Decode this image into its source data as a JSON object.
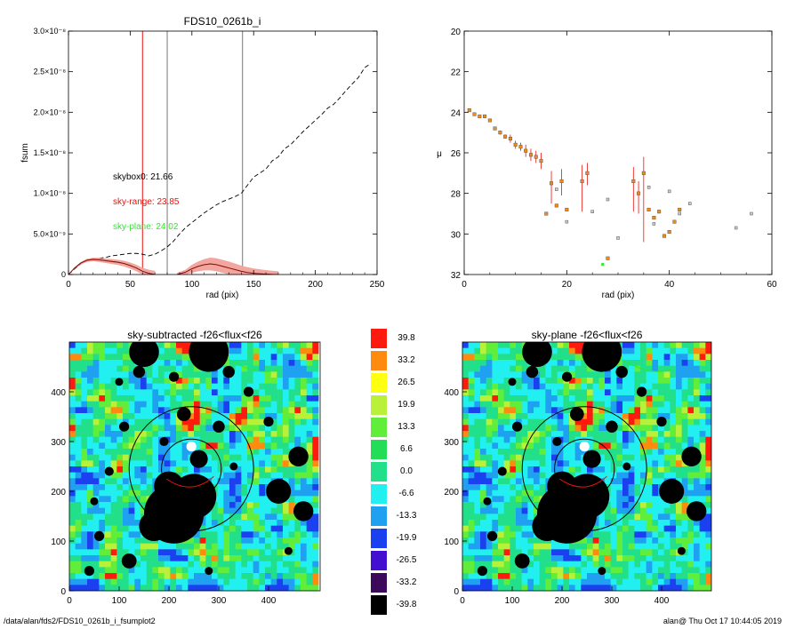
{
  "footer": {
    "path": "/data/alan/fds2/FDS10_0261b_i_fsumplot2",
    "stamp": "alan@  Thu Oct 17 10:44:05 2019"
  },
  "colors": {
    "black": "#000000",
    "red": "#e8120c",
    "green": "#2ee82e",
    "gray": "#777777",
    "orange": "#f08a1a",
    "band": "#f2a6a0"
  },
  "chart_data": [
    {
      "id": "fsum",
      "type": "line",
      "title": "FDS10_0261b_i",
      "xlabel": "rad (pix)",
      "ylabel": "fsum",
      "xlim": [
        0,
        250
      ],
      "ylim": [
        0,
        3e-08
      ],
      "xticks": [
        "0",
        "50",
        "100",
        "150",
        "200",
        "250"
      ],
      "yticks": [
        "0",
        "5.0×10⁻⁹",
        "1.0×10⁻⁸",
        "1.5×10⁻⁸",
        "2.0×10⁻⁸",
        "2.5×10⁻⁸",
        "3.0×10⁻⁸"
      ],
      "vlines": [
        {
          "x": 60,
          "color": "red"
        },
        {
          "x": 80,
          "color": "gray"
        },
        {
          "x": 141,
          "color": "gray"
        }
      ],
      "annotations": [
        {
          "text": "skybox0: 21.66",
          "color": "black",
          "x": 18,
          "y": 1.18e-08
        },
        {
          "text": "sky-range: 23.85",
          "color": "red",
          "x": 18,
          "y": 8.8e-09
        },
        {
          "text": "sky-plane: 24.02",
          "color": "green",
          "x": 18,
          "y": 6e-09
        }
      ],
      "series": [
        {
          "style": "dashed",
          "color": "black",
          "x": [
            0,
            5,
            10,
            15,
            20,
            25,
            30,
            35,
            40,
            45,
            50,
            55,
            60,
            65,
            70,
            75,
            80,
            85,
            90,
            95,
            100,
            105,
            110,
            115,
            120,
            125,
            130,
            135,
            140,
            145,
            150,
            155,
            160,
            165,
            170,
            175,
            180,
            185,
            190,
            195,
            200,
            205,
            210,
            215,
            220,
            225,
            230,
            235,
            240,
            245
          ],
          "y": [
            0,
            7e-10,
            1.3e-09,
            1.7e-09,
            1.9e-09,
            2e-09,
            2.1e-09,
            2.3e-09,
            2.4e-09,
            2.5e-09,
            2.6e-09,
            2.6e-09,
            2.5e-09,
            2.3e-09,
            2.5e-09,
            2.9e-09,
            3.4e-09,
            4.1e-09,
            5e-09,
            5.8e-09,
            6.4e-09,
            7e-09,
            7.6e-09,
            8.1e-09,
            8.6e-09,
            9e-09,
            9.3e-09,
            9.6e-09,
            1e-08,
            1.1e-08,
            1.2e-08,
            1.25e-08,
            1.3e-08,
            1.4e-08,
            1.45e-08,
            1.55e-08,
            1.6e-08,
            1.68e-08,
            1.76e-08,
            1.83e-08,
            1.9e-08,
            1.97e-08,
            2.05e-08,
            2.1e-08,
            2.18e-08,
            2.27e-08,
            2.35e-08,
            2.43e-08,
            2.55e-08,
            2.6e-08
          ]
        },
        {
          "style": "band",
          "color": "red",
          "x": [
            0,
            5,
            10,
            15,
            20,
            25,
            30,
            35,
            40,
            45,
            50,
            55,
            60,
            65,
            70
          ],
          "y": [
            0,
            8e-10,
            1.4e-09,
            1.75e-09,
            1.85e-09,
            1.8e-09,
            1.7e-09,
            1.6e-09,
            1.5e-09,
            1.35e-09,
            1.1e-09,
            8e-10,
            4e-10,
            1.5e-10,
            0
          ],
          "err": [
            0,
            1e-10,
            1.5e-10,
            2e-10,
            2.2e-10,
            2.5e-10,
            2.8e-10,
            3e-10,
            3.2e-10,
            3.5e-10,
            3.8e-10,
            4e-10,
            4.2e-10,
            4.5e-10,
            4.5e-10
          ]
        },
        {
          "style": "band",
          "color": "red",
          "x": [
            88,
            95,
            100,
            105,
            110,
            115,
            120,
            125,
            130,
            135,
            140,
            145,
            150,
            155,
            160,
            165,
            170
          ],
          "y": [
            0,
            3e-10,
            7e-10,
            1e-09,
            1.2e-09,
            1.3e-09,
            1.2e-09,
            1e-09,
            8e-10,
            6e-10,
            4e-10,
            2.5e-10,
            1.5e-10,
            1e-10,
            5e-11,
            2e-11,
            0
          ],
          "err": [
            2e-10,
            3e-10,
            5e-10,
            6e-10,
            7e-10,
            8e-10,
            8e-10,
            8e-10,
            8e-10,
            7.5e-10,
            7e-10,
            6.5e-10,
            6e-10,
            5.5e-10,
            5e-10,
            4.5e-10,
            4e-10
          ]
        }
      ]
    },
    {
      "id": "mu",
      "type": "scatter",
      "title": "",
      "xlabel": "rad (pix)",
      "ylabel": "μ",
      "xlim": [
        0,
        60
      ],
      "ylim": [
        32,
        20
      ],
      "xticks": [
        "0",
        "20",
        "40",
        "60"
      ],
      "yticks": [
        "20",
        "22",
        "24",
        "26",
        "28",
        "30",
        "32"
      ],
      "series": [
        {
          "color": "orange",
          "x": [
            1,
            2,
            3,
            4,
            5,
            6,
            7,
            8,
            9,
            10,
            11,
            12,
            13,
            14,
            15,
            16,
            17,
            18,
            19,
            20,
            23,
            24,
            28,
            33,
            34,
            35,
            36,
            37,
            38,
            39,
            40,
            41,
            42
          ],
          "y": [
            23.9,
            24.1,
            24.2,
            24.2,
            24.4,
            24.8,
            25.0,
            25.2,
            25.3,
            25.6,
            25.7,
            25.9,
            26.1,
            26.2,
            26.4,
            29.0,
            27.5,
            28.6,
            27.4,
            28.8,
            27.4,
            27.0,
            31.2,
            27.4,
            28.0,
            27.0,
            28.8,
            29.2,
            28.9,
            30.1,
            29.9,
            29.4,
            28.8
          ],
          "err_lo": [
            0,
            0,
            0,
            0,
            0,
            0,
            0.1,
            0.1,
            0.2,
            0.2,
            0.2,
            0.3,
            0.3,
            0.3,
            0.4,
            0,
            1.0,
            0,
            0.7,
            0,
            1.5,
            0.6,
            0,
            1.5,
            1.0,
            3.4,
            0,
            0,
            0,
            0,
            0,
            0,
            0
          ],
          "err_hi": [
            0,
            0,
            0,
            0,
            0,
            0,
            0.1,
            0.1,
            0.2,
            0.2,
            0.2,
            0.3,
            0.3,
            0.3,
            0.4,
            0,
            0.6,
            0,
            0.6,
            0,
            0.8,
            0.5,
            0,
            0.7,
            0.6,
            0.8,
            0,
            0,
            0,
            0,
            0,
            0,
            0
          ]
        },
        {
          "color": "gray",
          "x": [
            18,
            20,
            25,
            28,
            30,
            36,
            37,
            40,
            42,
            44,
            53,
            56
          ],
          "y": [
            27.8,
            29.4,
            28.9,
            28.3,
            30.2,
            27.7,
            29.5,
            27.9,
            29.0,
            28.5,
            29.7,
            29.0
          ]
        },
        {
          "color": "green",
          "x": [
            27
          ],
          "y": [
            31.5
          ]
        }
      ]
    },
    {
      "id": "sky-subtracted",
      "type": "heatmap",
      "title": "sky-subtracted -f26<flux<f26",
      "xlim": [
        0,
        500
      ],
      "ylim": [
        0,
        500
      ],
      "xticks": [
        "0",
        "100",
        "200",
        "300",
        "400"
      ],
      "yticks": [
        "0",
        "100",
        "200",
        "300",
        "400"
      ]
    },
    {
      "id": "sky-plane",
      "type": "heatmap",
      "title": "sky-plane -f26<flux<f26",
      "xlim": [
        0,
        500
      ],
      "ylim": [
        0,
        500
      ],
      "xticks": [
        "0",
        "100",
        "200",
        "300",
        "400"
      ],
      "yticks": [
        "0",
        "100",
        "200",
        "300",
        "400"
      ]
    }
  ],
  "colorbar": {
    "labels": [
      "39.8",
      "33.2",
      "26.5",
      "19.9",
      "13.3",
      "6.6",
      "0.0",
      "-6.6",
      "-13.3",
      "-19.9",
      "-26.5",
      "-33.2",
      "-39.8"
    ],
    "colors": [
      "#ff1a10",
      "#ff8a10",
      "#ffff10",
      "#b8f03a",
      "#60ee3a",
      "#22dd55",
      "#22e08a",
      "#22f0f0",
      "#1fa0f0",
      "#1a40f0",
      "#4410d0",
      "#3c0a5a",
      "#000000"
    ]
  }
}
